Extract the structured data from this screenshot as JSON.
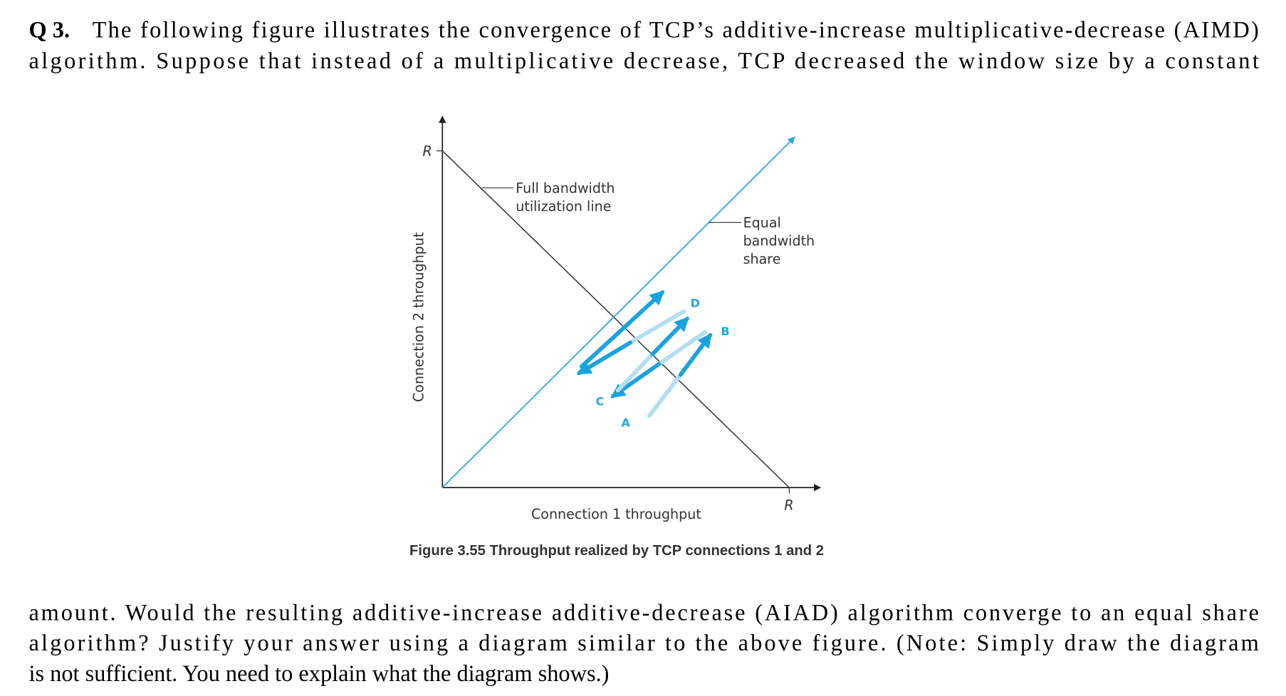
{
  "question": {
    "number": "Q 3.",
    "lines_before": [
      "The following figure illustrates the convergence of TCP’s additive-increase multiplicative-decrease (AIMD)",
      "algorithm.  Suppose that instead of a multiplicative decrease, TCP decreased the window size by a constant"
    ],
    "lines_after": [
      "amount. Would the resulting additive-increase additive-decrease (AIAD) algorithm converge to an equal share",
      "algorithm? Justify your answer using a diagram similar to the above figure. (Note: Simply draw the diagram",
      "is not sufficient. You need to explain what the diagram shows.)"
    ]
  },
  "figure": {
    "y_max_label": "R",
    "x_max_label": "R",
    "full_line_label": [
      "Full bandwidth",
      "utilization line"
    ],
    "equal_line_label": [
      "Equal",
      "bandwidth",
      "share"
    ],
    "points": [
      "D",
      "B",
      "C",
      "A"
    ],
    "x_axis_label": "Connection 1 throughput",
    "y_axis_label": "Connection 2 throughput",
    "caption": "Figure 3.55 Throughput realized by TCP connections 1 and 2"
  }
}
